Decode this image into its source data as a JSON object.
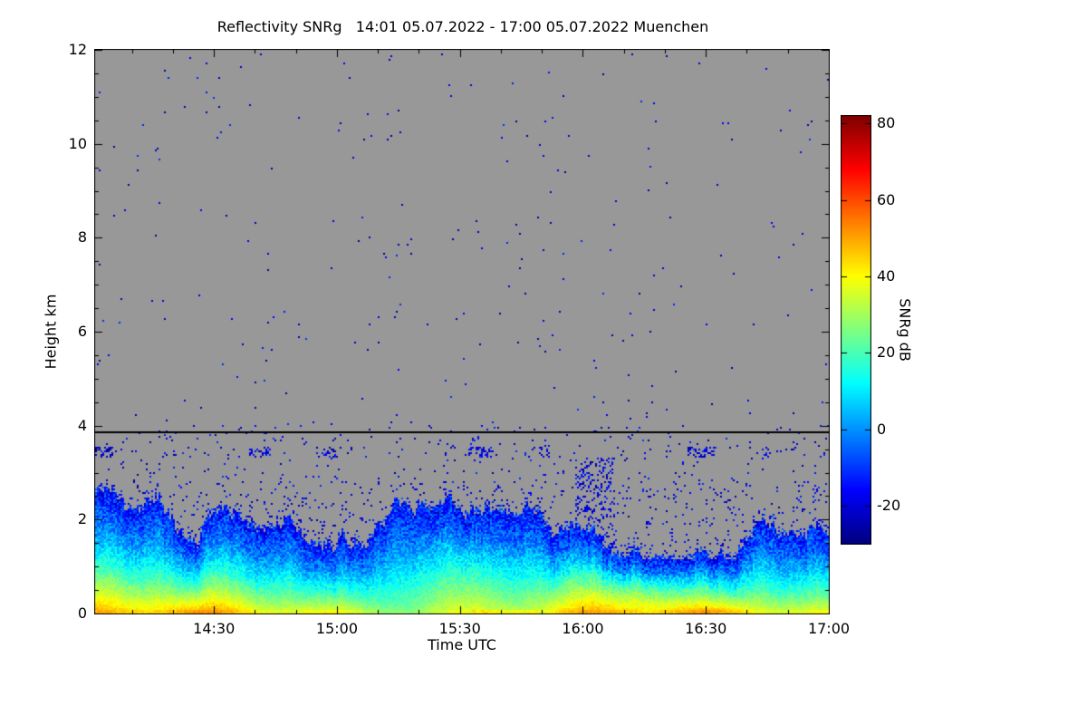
{
  "chart_data": {
    "type": "heatmap",
    "title": "Reflectivity SNRg   14:01 05.07.2022 - 17:00 05.07.2022 Muenchen",
    "variable": "Reflectivity SNRg",
    "time_start": "14:01 05.07.2022",
    "time_end": "17:00 05.07.2022",
    "station": "Muenchen",
    "xlabel": "Time UTC",
    "ylabel": "Height km",
    "xlim_minutes": [
      0,
      179
    ],
    "x_ticks": [
      {
        "label": "14:30",
        "minute": 29
      },
      {
        "label": "15:00",
        "minute": 59
      },
      {
        "label": "15:30",
        "minute": 89
      },
      {
        "label": "16:00",
        "minute": 119
      },
      {
        "label": "16:30",
        "minute": 149
      },
      {
        "label": "17:00",
        "minute": 179
      }
    ],
    "x_minor_step_min": 10,
    "ylim_km": [
      0,
      12
    ],
    "y_ticks": [
      0,
      2,
      4,
      6,
      8,
      10,
      12
    ],
    "y_minor_step_km": 0.5,
    "colorbar": {
      "label": "SNRg dB",
      "ticks": [
        80,
        60,
        40,
        20,
        0,
        -20
      ],
      "vmin": -30,
      "vmax": 82,
      "colormap": "jet"
    },
    "no_data_color": "#989898",
    "frame_color": "#000000",
    "grid": {
      "nx": 405,
      "ny": 311
    },
    "features": {
      "horizontal_black_line_km": 3.85,
      "boundary_layer_top_km": {
        "mean": 1.8,
        "min": 1.15,
        "max": 2.7
      },
      "surface_max_snr_db": 40,
      "layer_description": "Boundary-layer aerosol echo from ground to ~2.5 km: yellow-green (25-40 dB) near the surface grading to cyan (0-15 dB) mid-layer, then speckled blue (-5 to -28 dB) at the jagged layer top; strongest plumes near 15:30 and 16:00-16:25",
      "detached_thin_layers_km": [
        3.35,
        3.5
      ],
      "background_speckle": {
        "snr_db_range": [
          -28,
          -10
        ],
        "density_above_4km": 0.003,
        "density_2p6_to_4km": 0.022
      }
    }
  }
}
